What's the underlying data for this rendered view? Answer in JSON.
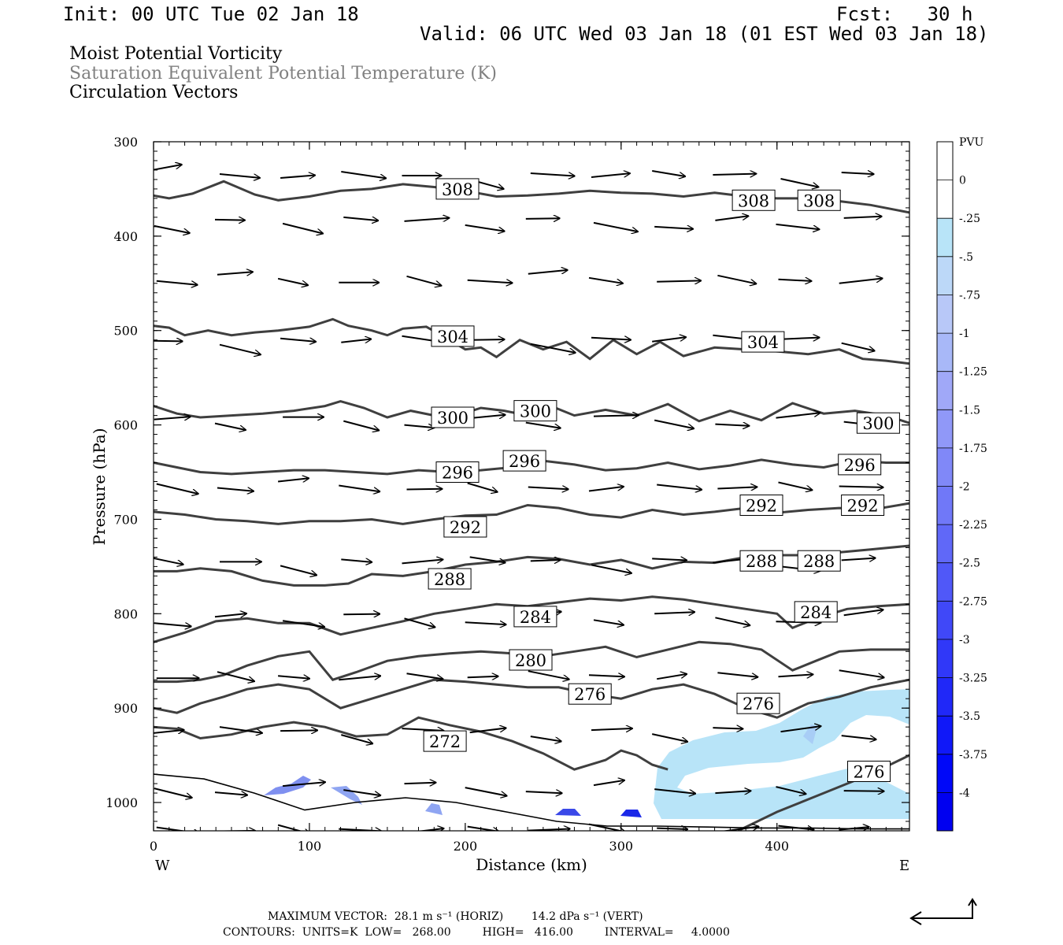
{
  "header": {
    "init": "Init: 00 UTC Tue 02 Jan 18",
    "fcst": "Fcst:   30 h",
    "valid": "Valid: 06 UTC Wed 03 Jan 18 (01 EST Wed 03 Jan 18)"
  },
  "legend": {
    "line1": "Moist Potential Vorticity",
    "line2": "Saturation Equivalent Potential Temperature (K)",
    "line3": "Circulation Vectors",
    "line2_color": "#808080"
  },
  "footer": {
    "line1": "MAXIMUM VECTOR:  28.1 m s⁻¹ (HORIZ)        14.2 dPa s⁻¹ (VERT)",
    "line2": "CONTOURS:  UNITS=K  LOW=   268.00         HIGH=   416.00         INTERVAL=     4.0000"
  },
  "chart_data": {
    "type": "cross-section",
    "xlabel": "Distance (km)",
    "ylabel": "Pressure (hPa)",
    "xlim": [
      0,
      485
    ],
    "ylim": [
      1030,
      300
    ],
    "y_scale": "linear",
    "x_ticks": [
      0,
      100,
      200,
      300,
      400
    ],
    "y_ticks": [
      300,
      400,
      500,
      600,
      700,
      800,
      900,
      1000
    ],
    "x_end_labels": {
      "left": "W",
      "right": "E"
    },
    "colorbar": {
      "unit": "PVU",
      "labels": [
        "0",
        "-.25",
        "-.5",
        "-.75",
        "-1",
        "-1.25",
        "-1.5",
        "-1.75",
        "-2",
        "-2.25",
        "-2.5",
        "-2.75",
        "-3",
        "-3.25",
        "-3.5",
        "-3.75",
        "-4"
      ],
      "colors": [
        "#ffffff",
        "#ffffff",
        "#b8e4f8",
        "#bcd8f8",
        "#b8c8f8",
        "#a8b8f8",
        "#a0a8f8",
        "#9098f8",
        "#8088f8",
        "#7078f8",
        "#6068f8",
        "#5058f8",
        "#4048f8",
        "#3038f8",
        "#2028f8",
        "#1018f8",
        "#0008f8",
        "#0000f0"
      ]
    },
    "isentropes": [
      {
        "theta": 308,
        "x": [
          0,
          10,
          25,
          45,
          65,
          80,
          100,
          120,
          140,
          160,
          180,
          200,
          220,
          240,
          260,
          280,
          300,
          320,
          340,
          360,
          380,
          400,
          420,
          440,
          460,
          485
        ],
        "p": [
          357,
          360,
          355,
          342,
          356,
          362,
          358,
          352,
          350,
          345,
          348,
          352,
          358,
          357,
          355,
          352,
          354,
          355,
          358,
          354,
          358,
          360,
          360,
          363,
          367,
          375
        ]
      },
      {
        "theta": 304,
        "x": [
          0,
          10,
          20,
          35,
          50,
          65,
          80,
          100,
          115,
          125,
          140,
          150,
          160,
          175,
          190,
          200,
          210,
          220,
          235,
          250,
          265,
          280,
          295,
          310,
          325,
          340,
          360,
          380,
          400,
          420,
          440,
          455,
          470,
          485
        ],
        "p": [
          495,
          497,
          505,
          500,
          505,
          502,
          500,
          496,
          488,
          495,
          500,
          505,
          498,
          496,
          510,
          520,
          518,
          528,
          510,
          520,
          512,
          530,
          510,
          525,
          512,
          527,
          518,
          520,
          522,
          525,
          520,
          530,
          532,
          535
        ]
      },
      {
        "theta": 300,
        "x": [
          0,
          15,
          30,
          50,
          70,
          90,
          110,
          120,
          135,
          150,
          165,
          180,
          195,
          210,
          225,
          240,
          255,
          270,
          290,
          310,
          330,
          350,
          370,
          390,
          410,
          430,
          450,
          470,
          485
        ],
        "p": [
          580,
          588,
          592,
          590,
          588,
          585,
          580,
          575,
          582,
          592,
          585,
          590,
          590,
          582,
          585,
          590,
          580,
          590,
          584,
          590,
          578,
          596,
          585,
          595,
          577,
          588,
          585,
          590,
          598
        ]
      },
      {
        "theta": 296,
        "x": [
          0,
          15,
          30,
          50,
          70,
          90,
          110,
          130,
          150,
          170,
          190,
          210,
          230,
          250,
          270,
          290,
          310,
          330,
          350,
          370,
          390,
          410,
          430,
          450,
          470,
          485
        ],
        "p": [
          640,
          645,
          650,
          652,
          650,
          648,
          648,
          650,
          652,
          648,
          650,
          648,
          645,
          638,
          642,
          648,
          646,
          640,
          647,
          643,
          637,
          642,
          645,
          638,
          640,
          640
        ]
      },
      {
        "theta": 292,
        "x": [
          0,
          20,
          40,
          60,
          80,
          100,
          120,
          140,
          160,
          180,
          200,
          220,
          240,
          260,
          280,
          300,
          320,
          340,
          360,
          380,
          400,
          420,
          440,
          460,
          485
        ],
        "p": [
          692,
          695,
          700,
          702,
          705,
          702,
          702,
          700,
          705,
          700,
          696,
          695,
          685,
          688,
          695,
          698,
          690,
          695,
          692,
          688,
          693,
          690,
          688,
          690,
          683
        ]
      },
      {
        "theta": 288,
        "x": [
          0,
          15,
          30,
          50,
          70,
          90,
          110,
          125,
          140,
          160,
          180,
          200,
          220,
          240,
          260,
          280,
          300,
          320,
          340,
          360,
          380,
          400,
          420,
          440,
          460,
          485
        ],
        "p": [
          755,
          755,
          752,
          755,
          765,
          770,
          770,
          768,
          758,
          760,
          755,
          748,
          745,
          740,
          742,
          748,
          743,
          752,
          745,
          746,
          740,
          738,
          738,
          735,
          732,
          728
        ]
      },
      {
        "theta": 284,
        "x": [
          0,
          20,
          40,
          60,
          80,
          100,
          120,
          140,
          160,
          180,
          200,
          220,
          240,
          260,
          280,
          300,
          320,
          340,
          360,
          380,
          400,
          410,
          425,
          445,
          465,
          485
        ],
        "p": [
          830,
          820,
          808,
          805,
          810,
          810,
          822,
          815,
          808,
          800,
          795,
          790,
          792,
          788,
          784,
          786,
          782,
          785,
          790,
          795,
          800,
          815,
          805,
          795,
          792,
          790
        ]
      },
      {
        "theta": 280,
        "x": [
          0,
          15,
          30,
          45,
          60,
          80,
          100,
          115,
          130,
          150,
          170,
          190,
          210,
          230,
          250,
          270,
          290,
          310,
          330,
          350,
          370,
          390,
          410,
          425,
          440,
          460,
          485
        ],
        "p": [
          872,
          872,
          870,
          865,
          855,
          845,
          840,
          870,
          862,
          850,
          845,
          842,
          840,
          842,
          845,
          840,
          835,
          846,
          838,
          830,
          832,
          838,
          860,
          850,
          840,
          838,
          838
        ]
      },
      {
        "theta": 276,
        "x": [
          0,
          15,
          30,
          45,
          60,
          80,
          100,
          120,
          140,
          160,
          180,
          200,
          220,
          240,
          260,
          280,
          300,
          320,
          340,
          360,
          380,
          400,
          420,
          440,
          460,
          485
        ],
        "p": [
          900,
          905,
          895,
          888,
          880,
          875,
          880,
          900,
          890,
          880,
          870,
          872,
          875,
          878,
          878,
          885,
          890,
          880,
          875,
          885,
          900,
          910,
          895,
          888,
          878,
          870
        ]
      },
      {
        "theta": 272,
        "x": [
          0,
          15,
          30,
          50,
          70,
          90,
          110,
          130,
          150,
          170,
          190,
          210,
          230,
          250,
          270,
          290,
          300,
          310,
          320,
          330
        ],
        "p": [
          920,
          922,
          932,
          928,
          920,
          915,
          920,
          930,
          928,
          910,
          918,
          925,
          935,
          948,
          965,
          955,
          945,
          950,
          960,
          965
        ]
      },
      {
        "theta": 276,
        "x": [
          375,
          400,
          430,
          460,
          485
        ],
        "p": [
          1030,
          1010,
          990,
          970,
          950
        ]
      }
    ],
    "box_labels": [
      {
        "text": "308",
        "x": 195,
        "p": 350
      },
      {
        "text": "308",
        "x": 385,
        "p": 362
      },
      {
        "text": "308",
        "x": 427,
        "p": 362
      },
      {
        "text": "304",
        "x": 192,
        "p": 506
      },
      {
        "text": "304",
        "x": 391,
        "p": 512
      },
      {
        "text": "300",
        "x": 192,
        "p": 592
      },
      {
        "text": "300",
        "x": 245,
        "p": 585
      },
      {
        "text": "300",
        "x": 465,
        "p": 598
      },
      {
        "text": "296",
        "x": 195,
        "p": 650
      },
      {
        "text": "296",
        "x": 238,
        "p": 638
      },
      {
        "text": "296",
        "x": 453,
        "p": 642
      },
      {
        "text": "292",
        "x": 200,
        "p": 708
      },
      {
        "text": "292",
        "x": 390,
        "p": 685
      },
      {
        "text": "292",
        "x": 455,
        "p": 685
      },
      {
        "text": "288",
        "x": 190,
        "p": 763
      },
      {
        "text": "288",
        "x": 390,
        "p": 744
      },
      {
        "text": "288",
        "x": 427,
        "p": 744
      },
      {
        "text": "284",
        "x": 245,
        "p": 803
      },
      {
        "text": "284",
        "x": 425,
        "p": 798
      },
      {
        "text": "280",
        "x": 242,
        "p": 849
      },
      {
        "text": "276",
        "x": 280,
        "p": 885
      },
      {
        "text": "276",
        "x": 388,
        "p": 895
      },
      {
        "text": "272",
        "x": 187,
        "p": 935
      },
      {
        "text": "276",
        "x": 459,
        "p": 967
      }
    ],
    "vectors_grid": {
      "x": [
        10,
        50,
        90,
        130,
        170,
        210,
        250,
        290,
        330,
        370,
        410,
        450
      ],
      "p": [
        335,
        385,
        445,
        510,
        595,
        665,
        745,
        805,
        865,
        925,
        985,
        1028
      ]
    },
    "mpv_shading": "negative MPV (light blue, up to about -4 PVU near the surface) in the lower right, below 880 hPa from 320 to 485 km",
    "terrain_surface_p": [
      970,
      975,
      990,
      1008,
      1000,
      995,
      1000,
      1010,
      1020,
      1025,
      1025,
      1026,
      1027,
      1027,
      1028,
      1028
    ]
  }
}
